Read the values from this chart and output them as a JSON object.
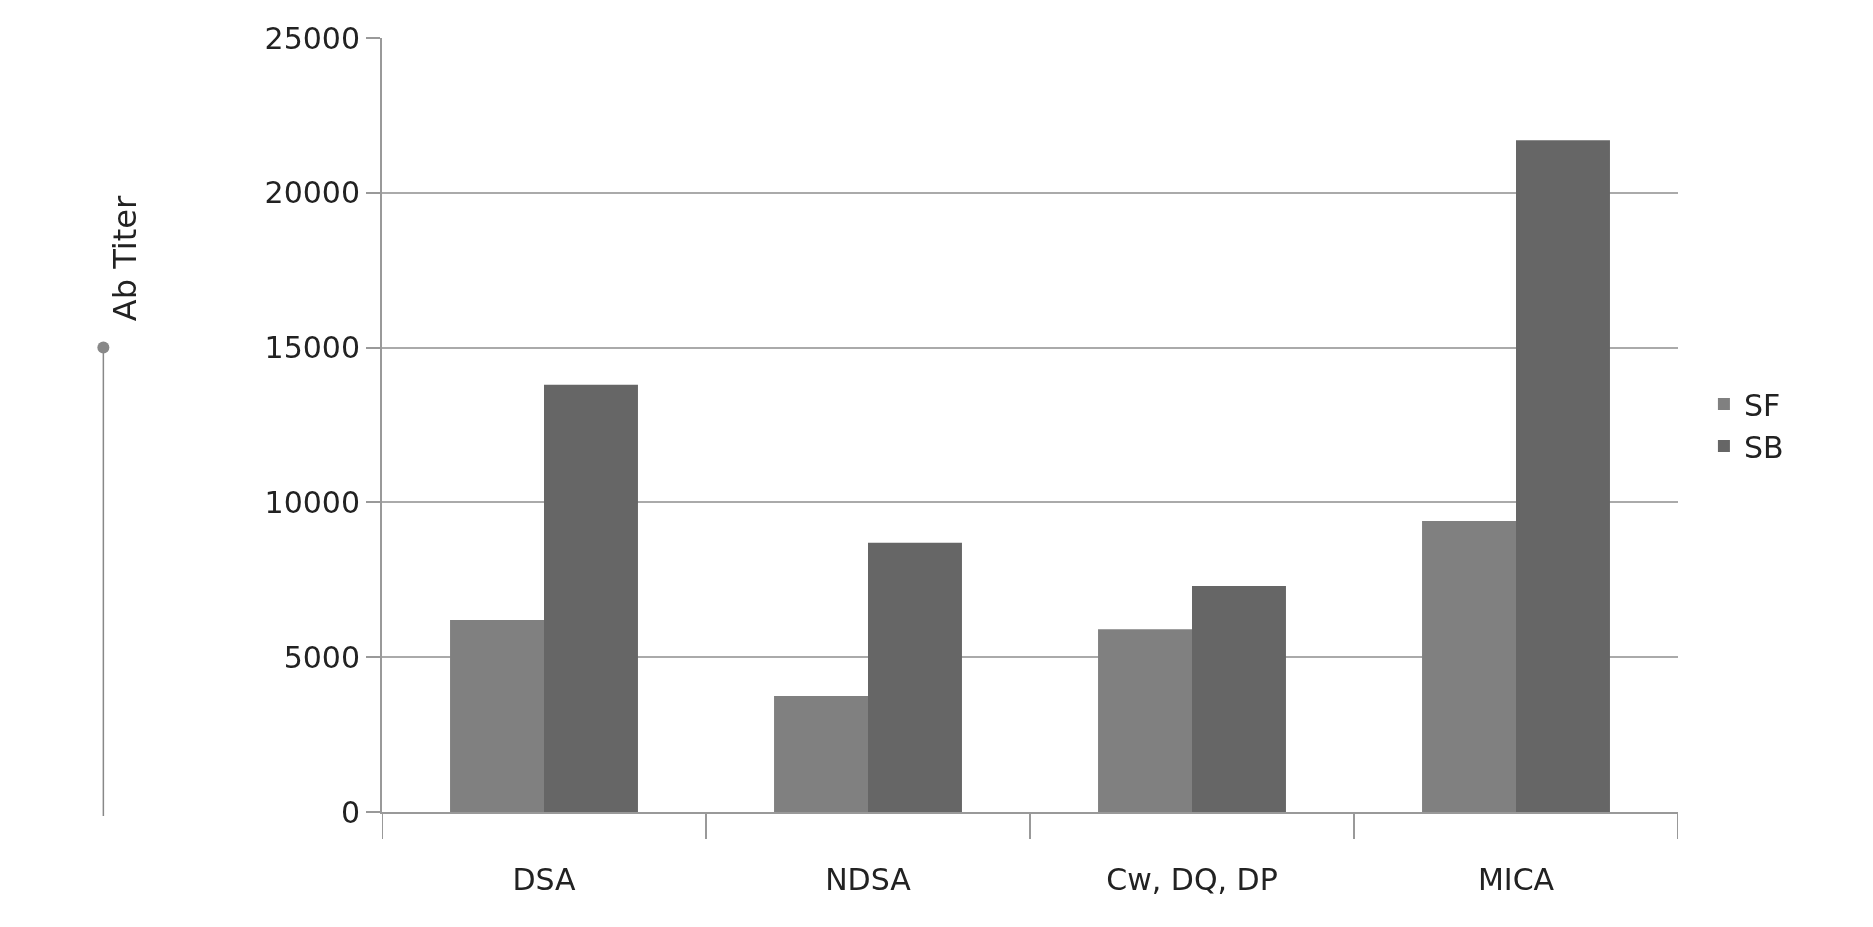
{
  "chart_data": {
    "type": "bar",
    "ylabel": "Ab Titer",
    "categories": [
      "DSA",
      "NDSA",
      "Cw, DQ, DP",
      "MICA"
    ],
    "series": [
      {
        "name": "SF",
        "color": "#808080",
        "values": [
          6200,
          3750,
          5900,
          9400
        ]
      },
      {
        "name": "SB",
        "color": "#666666",
        "values": [
          13800,
          8700,
          7300,
          21700
        ]
      }
    ],
    "ylim": [
      0,
      25000
    ],
    "yticks": [
      0,
      5000,
      10000,
      15000,
      20000,
      25000
    ],
    "grid": "y",
    "legend": "right"
  }
}
